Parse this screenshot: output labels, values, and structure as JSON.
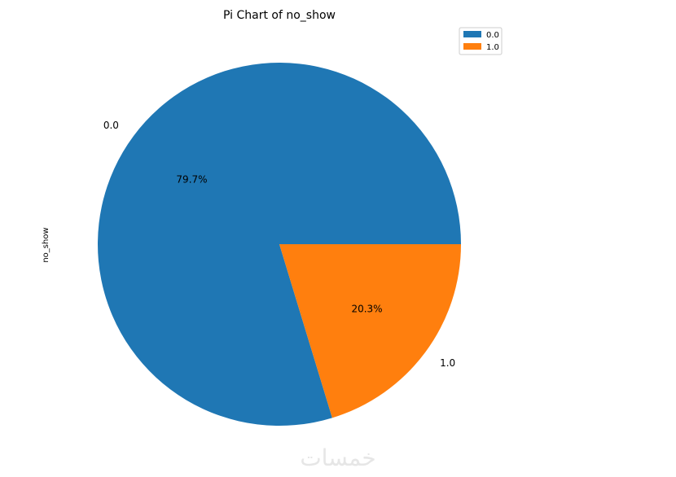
{
  "chart_data": {
    "type": "pie",
    "title": "Pi Chart of no_show",
    "ylabel": "no_show",
    "categories": [
      "0.0",
      "1.0"
    ],
    "values": [
      79.7,
      20.3
    ],
    "percent_labels": [
      "79.7%",
      "20.3%"
    ],
    "colors": [
      "#1f77b4",
      "#ff7f0e"
    ],
    "legend": {
      "placement": "top-right",
      "entries": [
        "0.0",
        "1.0"
      ]
    }
  },
  "watermark": "خمسات"
}
